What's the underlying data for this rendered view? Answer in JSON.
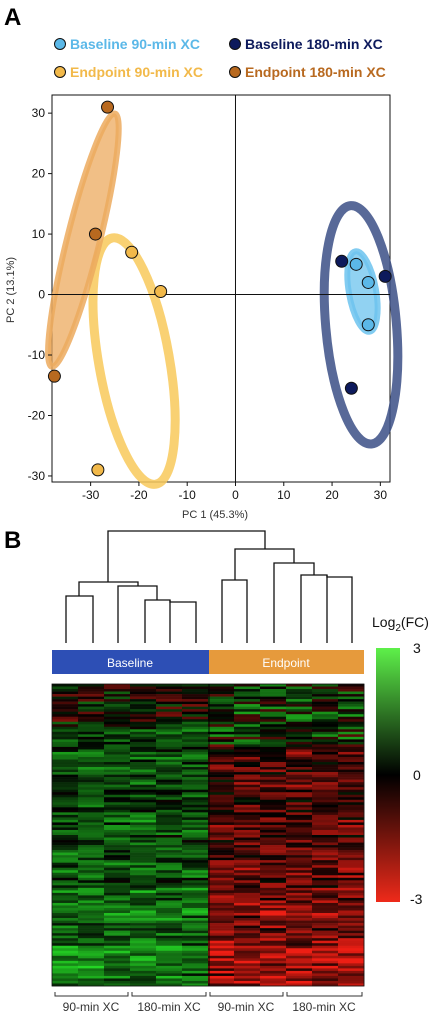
{
  "panel_a": {
    "letter": "A",
    "legend": [
      {
        "label": "Baseline 90-min XC",
        "color": "#5bb8e8"
      },
      {
        "label": "Baseline 180-min XC",
        "color": "#0d1a5c"
      },
      {
        "label": "Endpoint 90-min XC",
        "color": "#f2b94a"
      },
      {
        "label": "Endpoint 180-min XC",
        "color": "#b8691f"
      }
    ]
  },
  "panel_b": {
    "letter": "B",
    "group_labels": {
      "baseline": "Baseline",
      "endpoint": "Endpoint"
    },
    "group_colors": {
      "baseline": "#2d4fb5",
      "endpoint": "#e69a3c"
    },
    "colorbar": {
      "title_main": "Log",
      "title_sub": "2",
      "title_end": "(FC)",
      "max_label": "3",
      "mid_label": "0",
      "min_label": "-3"
    },
    "bottom_labels": [
      "90-min XC",
      "180-min XC",
      "90-min XC",
      "180-min XC"
    ]
  },
  "chart_data": [
    {
      "type": "scatter",
      "title": "",
      "xlabel": "PC 1 (45.3%)",
      "ylabel": "PC 2 (13.1%)",
      "xlim": [
        -38,
        32
      ],
      "ylim": [
        -31,
        33
      ],
      "xticks": [
        -30,
        -20,
        -10,
        0,
        10,
        20,
        30
      ],
      "yticks": [
        30,
        20,
        10,
        0,
        -10,
        -20,
        -30
      ],
      "grid": false,
      "legend_position": "top",
      "series": [
        {
          "name": "Baseline 90-min XC",
          "color": "#5bb8e8",
          "points": [
            {
              "x": 25,
              "y": 5
            },
            {
              "x": 27.5,
              "y": 2
            },
            {
              "x": 27.5,
              "y": -5
            }
          ]
        },
        {
          "name": "Baseline 180-min XC",
          "color": "#0d1a5c",
          "points": [
            {
              "x": 22,
              "y": 5.5
            },
            {
              "x": 31,
              "y": 3
            },
            {
              "x": 24,
              "y": -15.5
            }
          ]
        },
        {
          "name": "Endpoint 90-min XC",
          "color": "#f2b94a",
          "points": [
            {
              "x": -21.5,
              "y": 7
            },
            {
              "x": -15.5,
              "y": 0.5
            },
            {
              "x": -28.5,
              "y": -29
            }
          ]
        },
        {
          "name": "Endpoint 180-min XC",
          "color": "#b8691f",
          "points": [
            {
              "x": -26.5,
              "y": 31
            },
            {
              "x": -29,
              "y": 10
            },
            {
              "x": -37.5,
              "y": -13.5
            }
          ]
        }
      ],
      "ellipses": [
        {
          "group": "Baseline 180-min XC",
          "color": "#3b4f86",
          "cx": 26,
          "cy": -5,
          "rx": 22,
          "ry": 6.5,
          "angle": 95,
          "fill": false
        },
        {
          "group": "Baseline 90-min XC",
          "color": "#6cc3ee",
          "cx": 26.3,
          "cy": 0.5,
          "rx": 7.5,
          "ry": 2.5,
          "angle": 100,
          "fill": true
        },
        {
          "group": "Endpoint 90-min XC",
          "color": "#f8c95a",
          "cx": -21,
          "cy": -11,
          "rx": 23,
          "ry": 6.5,
          "angle": 100,
          "fill": false
        },
        {
          "group": "Endpoint 180-min XC",
          "color": "#ecaa5e",
          "cx": -31.5,
          "cy": 9,
          "rx": 24,
          "ry": 3,
          "angle": 76,
          "fill": true
        }
      ]
    },
    {
      "type": "heatmap",
      "title": "",
      "columns": 12,
      "rows": 120,
      "value_range": [
        -3,
        3
      ],
      "column_groups": [
        {
          "name": "Baseline",
          "columns": [
            0,
            5
          ],
          "sublabels": [
            "90-min XC",
            "180-min XC"
          ]
        },
        {
          "name": "Endpoint",
          "columns": [
            6,
            11
          ],
          "sublabels": [
            "90-min XC",
            "180-min XC"
          ]
        }
      ],
      "pattern": "baseline columns predominantly positive (green) log2FC; endpoint columns predominantly negative (red) in the lower half"
    }
  ]
}
